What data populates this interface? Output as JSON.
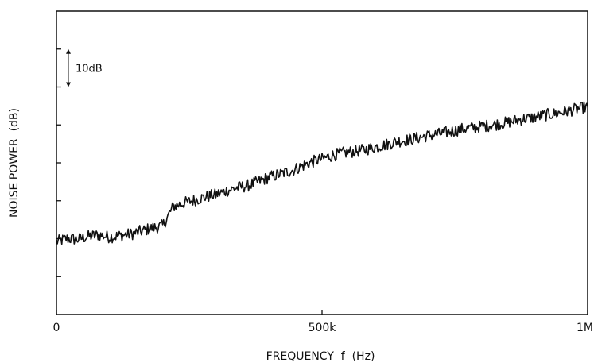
{
  "chart_data": {
    "type": "line",
    "title": "",
    "xlabel": "FREQUENCY  f  (Hz)",
    "ylabel": "NOISE POWER  (dB)",
    "xlim": [
      0,
      1000000
    ],
    "xticks": [
      {
        "value": 0,
        "label": "0"
      },
      {
        "value": 500000,
        "label": "500k"
      },
      {
        "value": 1000000,
        "label": "1M"
      }
    ],
    "y_units": "dB",
    "ylim": [
      0,
      80
    ],
    "yticks": [
      10,
      20,
      30,
      40,
      50,
      60,
      70
    ],
    "y_ticks_labeled": false,
    "scale_marker": {
      "label": "10dB",
      "from": 60,
      "to": 70
    },
    "grid": false,
    "series": [
      {
        "name": "",
        "x": [
          0,
          20000,
          40000,
          60000,
          80000,
          100000,
          120000,
          140000,
          160000,
          180000,
          200000,
          220000,
          240000,
          260000,
          280000,
          300000,
          320000,
          340000,
          360000,
          380000,
          400000,
          420000,
          440000,
          460000,
          480000,
          500000,
          520000,
          540000,
          560000,
          580000,
          600000,
          620000,
          640000,
          660000,
          680000,
          700000,
          720000,
          740000,
          760000,
          780000,
          800000,
          820000,
          840000,
          860000,
          880000,
          900000,
          920000,
          940000,
          960000,
          980000,
          1000000
        ],
        "y": [
          19.2,
          20.0,
          19.8,
          20.6,
          21.0,
          20.4,
          20.8,
          21.2,
          22.0,
          22.8,
          23.4,
          28.5,
          29.4,
          30.2,
          31.0,
          31.6,
          32.6,
          33.4,
          34.0,
          35.0,
          36.2,
          37.0,
          37.8,
          39.0,
          40.2,
          41.0,
          42.0,
          42.6,
          43.0,
          43.4,
          44.2,
          44.8,
          45.6,
          46.0,
          46.6,
          47.2,
          47.6,
          48.2,
          48.8,
          49.2,
          49.6,
          50.0,
          50.4,
          51.0,
          51.6,
          52.0,
          52.6,
          53.0,
          53.6,
          54.2,
          54.8
        ]
      }
    ]
  }
}
